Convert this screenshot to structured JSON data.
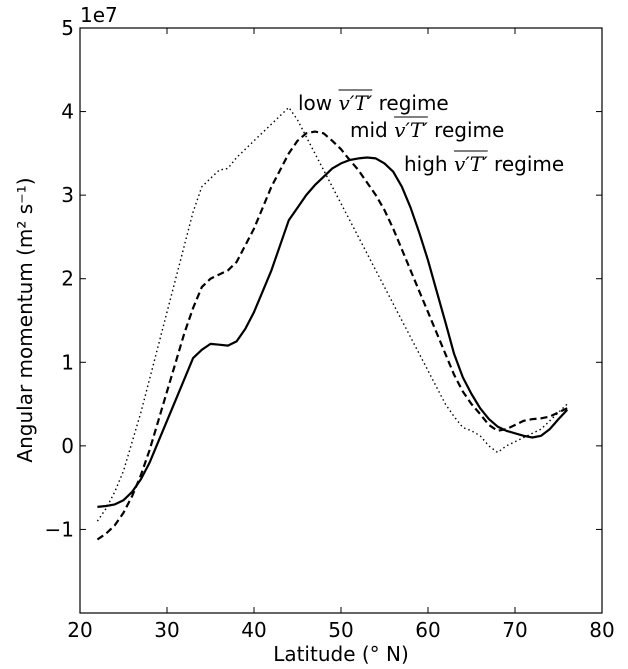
{
  "chart_data": {
    "type": "line",
    "xlabel": "Latitude (° N)",
    "ylabel": "Angular momentum (m² s⁻¹)",
    "y_offset_label": "1e7",
    "xlim": [
      20,
      80
    ],
    "ylim": [
      -2.0,
      5.0
    ],
    "y_scale_factor": 10000000,
    "x_ticks": [
      20,
      30,
      40,
      50,
      60,
      70,
      80
    ],
    "y_ticks": [
      -1,
      0,
      1,
      2,
      3,
      4,
      5
    ],
    "y_tick_labels": [
      "−1",
      "0",
      "1",
      "2",
      "3",
      "4",
      "5"
    ],
    "grid": false,
    "series": [
      {
        "name": "low v'T' regime",
        "legend_prefix": "low",
        "legend_math": "v′T′",
        "legend_suffix": "regime",
        "dash": "dotted",
        "x": [
          22,
          23,
          24,
          25,
          26,
          27,
          28,
          29,
          30,
          31,
          32,
          33,
          34,
          35,
          36,
          37,
          38,
          39,
          40,
          41,
          42,
          43,
          44,
          45,
          46,
          47,
          48,
          49,
          50,
          51,
          52,
          53,
          54,
          55,
          56,
          57,
          58,
          59,
          60,
          61,
          62,
          63,
          64,
          65,
          66,
          67,
          68,
          69,
          70,
          71,
          72,
          73,
          74,
          75,
          76
        ],
        "y": [
          -0.9,
          -0.75,
          -0.55,
          -0.3,
          0.05,
          0.4,
          0.8,
          1.2,
          1.6,
          2.0,
          2.4,
          2.8,
          3.1,
          3.2,
          3.3,
          3.32,
          3.45,
          3.55,
          3.65,
          3.75,
          3.85,
          3.95,
          4.05,
          3.9,
          3.7,
          3.5,
          3.3,
          3.1,
          2.9,
          2.7,
          2.5,
          2.3,
          2.1,
          1.9,
          1.7,
          1.5,
          1.3,
          1.1,
          0.9,
          0.7,
          0.5,
          0.35,
          0.22,
          0.18,
          0.12,
          0.0,
          -0.08,
          0.0,
          0.05,
          0.1,
          0.15,
          0.2,
          0.3,
          0.4,
          0.5
        ]
      },
      {
        "name": "mid v'T' regime",
        "legend_prefix": "mid",
        "legend_math": "v′T′",
        "legend_suffix": "regime",
        "dash": "dashed",
        "x": [
          22,
          23,
          24,
          25,
          26,
          27,
          28,
          29,
          30,
          31,
          32,
          33,
          34,
          35,
          36,
          37,
          38,
          39,
          40,
          41,
          42,
          43,
          44,
          45,
          46,
          47,
          48,
          49,
          50,
          51,
          52,
          53,
          54,
          55,
          56,
          57,
          58,
          59,
          60,
          61,
          62,
          63,
          64,
          65,
          66,
          67,
          68,
          69,
          70,
          71,
          72,
          73,
          74,
          75,
          76
        ],
        "y": [
          -1.12,
          -1.05,
          -0.95,
          -0.8,
          -0.6,
          -0.35,
          -0.05,
          0.3,
          0.65,
          1.0,
          1.35,
          1.65,
          1.9,
          2.0,
          2.05,
          2.1,
          2.2,
          2.4,
          2.6,
          2.85,
          3.1,
          3.3,
          3.5,
          3.65,
          3.74,
          3.76,
          3.74,
          3.65,
          3.55,
          3.42,
          3.3,
          3.15,
          3.0,
          2.82,
          2.6,
          2.35,
          2.1,
          1.85,
          1.6,
          1.35,
          1.1,
          0.85,
          0.65,
          0.5,
          0.38,
          0.25,
          0.18,
          0.2,
          0.25,
          0.3,
          0.32,
          0.33,
          0.35,
          0.4,
          0.45
        ]
      },
      {
        "name": "high v'T' regime",
        "legend_prefix": "high",
        "legend_math": "v′T′",
        "legend_suffix": "regime",
        "dash": "solid",
        "x": [
          22,
          23,
          24,
          25,
          26,
          27,
          28,
          29,
          30,
          31,
          32,
          33,
          34,
          35,
          36,
          37,
          38,
          39,
          40,
          41,
          42,
          43,
          44,
          45,
          46,
          47,
          48,
          49,
          50,
          51,
          52,
          53,
          54,
          55,
          56,
          57,
          58,
          59,
          60,
          61,
          62,
          63,
          64,
          65,
          66,
          67,
          68,
          69,
          70,
          71,
          72,
          73,
          74,
          75,
          76
        ],
        "y": [
          -0.73,
          -0.72,
          -0.7,
          -0.65,
          -0.55,
          -0.4,
          -0.2,
          0.05,
          0.3,
          0.55,
          0.8,
          1.05,
          1.15,
          1.22,
          1.21,
          1.2,
          1.25,
          1.4,
          1.6,
          1.85,
          2.1,
          2.4,
          2.7,
          2.85,
          3.0,
          3.12,
          3.22,
          3.32,
          3.38,
          3.42,
          3.44,
          3.45,
          3.44,
          3.38,
          3.28,
          3.1,
          2.85,
          2.55,
          2.22,
          1.85,
          1.48,
          1.1,
          0.82,
          0.62,
          0.45,
          0.32,
          0.23,
          0.18,
          0.15,
          0.12,
          0.1,
          0.12,
          0.2,
          0.32,
          0.43
        ]
      }
    ]
  }
}
